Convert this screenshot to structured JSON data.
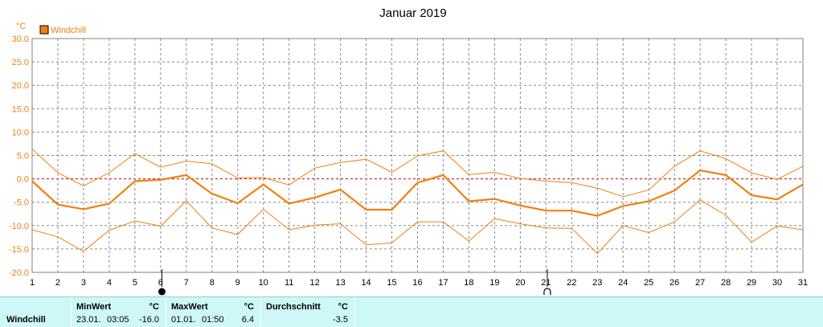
{
  "chart_data": {
    "type": "line",
    "title": "Januar 2019",
    "ylabel": "°C",
    "xlabel": "",
    "x": [
      1,
      2,
      3,
      4,
      5,
      6,
      7,
      8,
      9,
      10,
      11,
      12,
      13,
      14,
      15,
      16,
      17,
      18,
      19,
      20,
      21,
      22,
      23,
      24,
      25,
      26,
      27,
      28,
      29,
      30,
      31
    ],
    "ylim": [
      -20,
      30
    ],
    "yticks": [
      "30.0",
      "25.0",
      "20.0",
      "15.0",
      "10.0",
      "5.0",
      "0.0",
      "-5.0",
      "-10.0",
      "-15.0",
      "-20.0"
    ],
    "grid": true,
    "legend": "top-left",
    "series": [
      {
        "name": "Windchill",
        "role": "mean",
        "values": [
          -0.5,
          -5.5,
          -6.5,
          -5.3,
          -0.5,
          -0.2,
          0.8,
          -3.2,
          -5.2,
          -1.2,
          -5.3,
          -4.0,
          -2.3,
          -6.6,
          -6.6,
          -0.8,
          0.8,
          -4.8,
          -4.3,
          -5.7,
          -6.8,
          -6.8,
          -7.9,
          -5.8,
          -4.8,
          -2.5,
          1.8,
          0.8,
          -3.5,
          -4.4,
          -1.2
        ]
      },
      {
        "role": "max",
        "values": [
          6.4,
          1.3,
          -1.5,
          1.3,
          5.4,
          2.5,
          3.8,
          3.2,
          0.2,
          0.3,
          -1.3,
          2.3,
          3.5,
          4.2,
          1.4,
          4.9,
          6.0,
          0.9,
          1.4,
          0.1,
          -0.5,
          -0.8,
          -2.0,
          -3.8,
          -2.4,
          2.7,
          6.0,
          4.3,
          1.3,
          -0.1,
          2.7
        ]
      },
      {
        "role": "min",
        "values": [
          -10.9,
          -12.4,
          -15.5,
          -11.0,
          -9.0,
          -10.1,
          -4.7,
          -10.5,
          -11.9,
          -6.5,
          -10.9,
          -9.9,
          -9.6,
          -14.1,
          -13.7,
          -9.2,
          -9.2,
          -13.3,
          -8.5,
          -9.6,
          -10.5,
          -10.6,
          -16.0,
          -10.0,
          -11.5,
          -9.2,
          -4.5,
          -7.8,
          -13.5,
          -10.1,
          -10.9
        ]
      }
    ],
    "colors": {
      "line": "#f08010",
      "zero_line": "#cc0000",
      "grid": "#888888"
    },
    "markers": [
      {
        "day": 6.05,
        "symbol": "new-moon"
      },
      {
        "day": 21.05,
        "symbol": "full-moon"
      }
    ]
  },
  "footer": {
    "label": "Windchill",
    "min": {
      "header": "MinWert",
      "unit": "°C",
      "date": "23.01.",
      "time": "03:05",
      "value": "-16.0"
    },
    "max": {
      "header": "MaxWert",
      "unit": "°C",
      "date": "01.01.",
      "time": "01:50",
      "value": "6.4"
    },
    "avg": {
      "header": "Durchschnitt",
      "unit": "°C",
      "value": "-3.5"
    }
  }
}
